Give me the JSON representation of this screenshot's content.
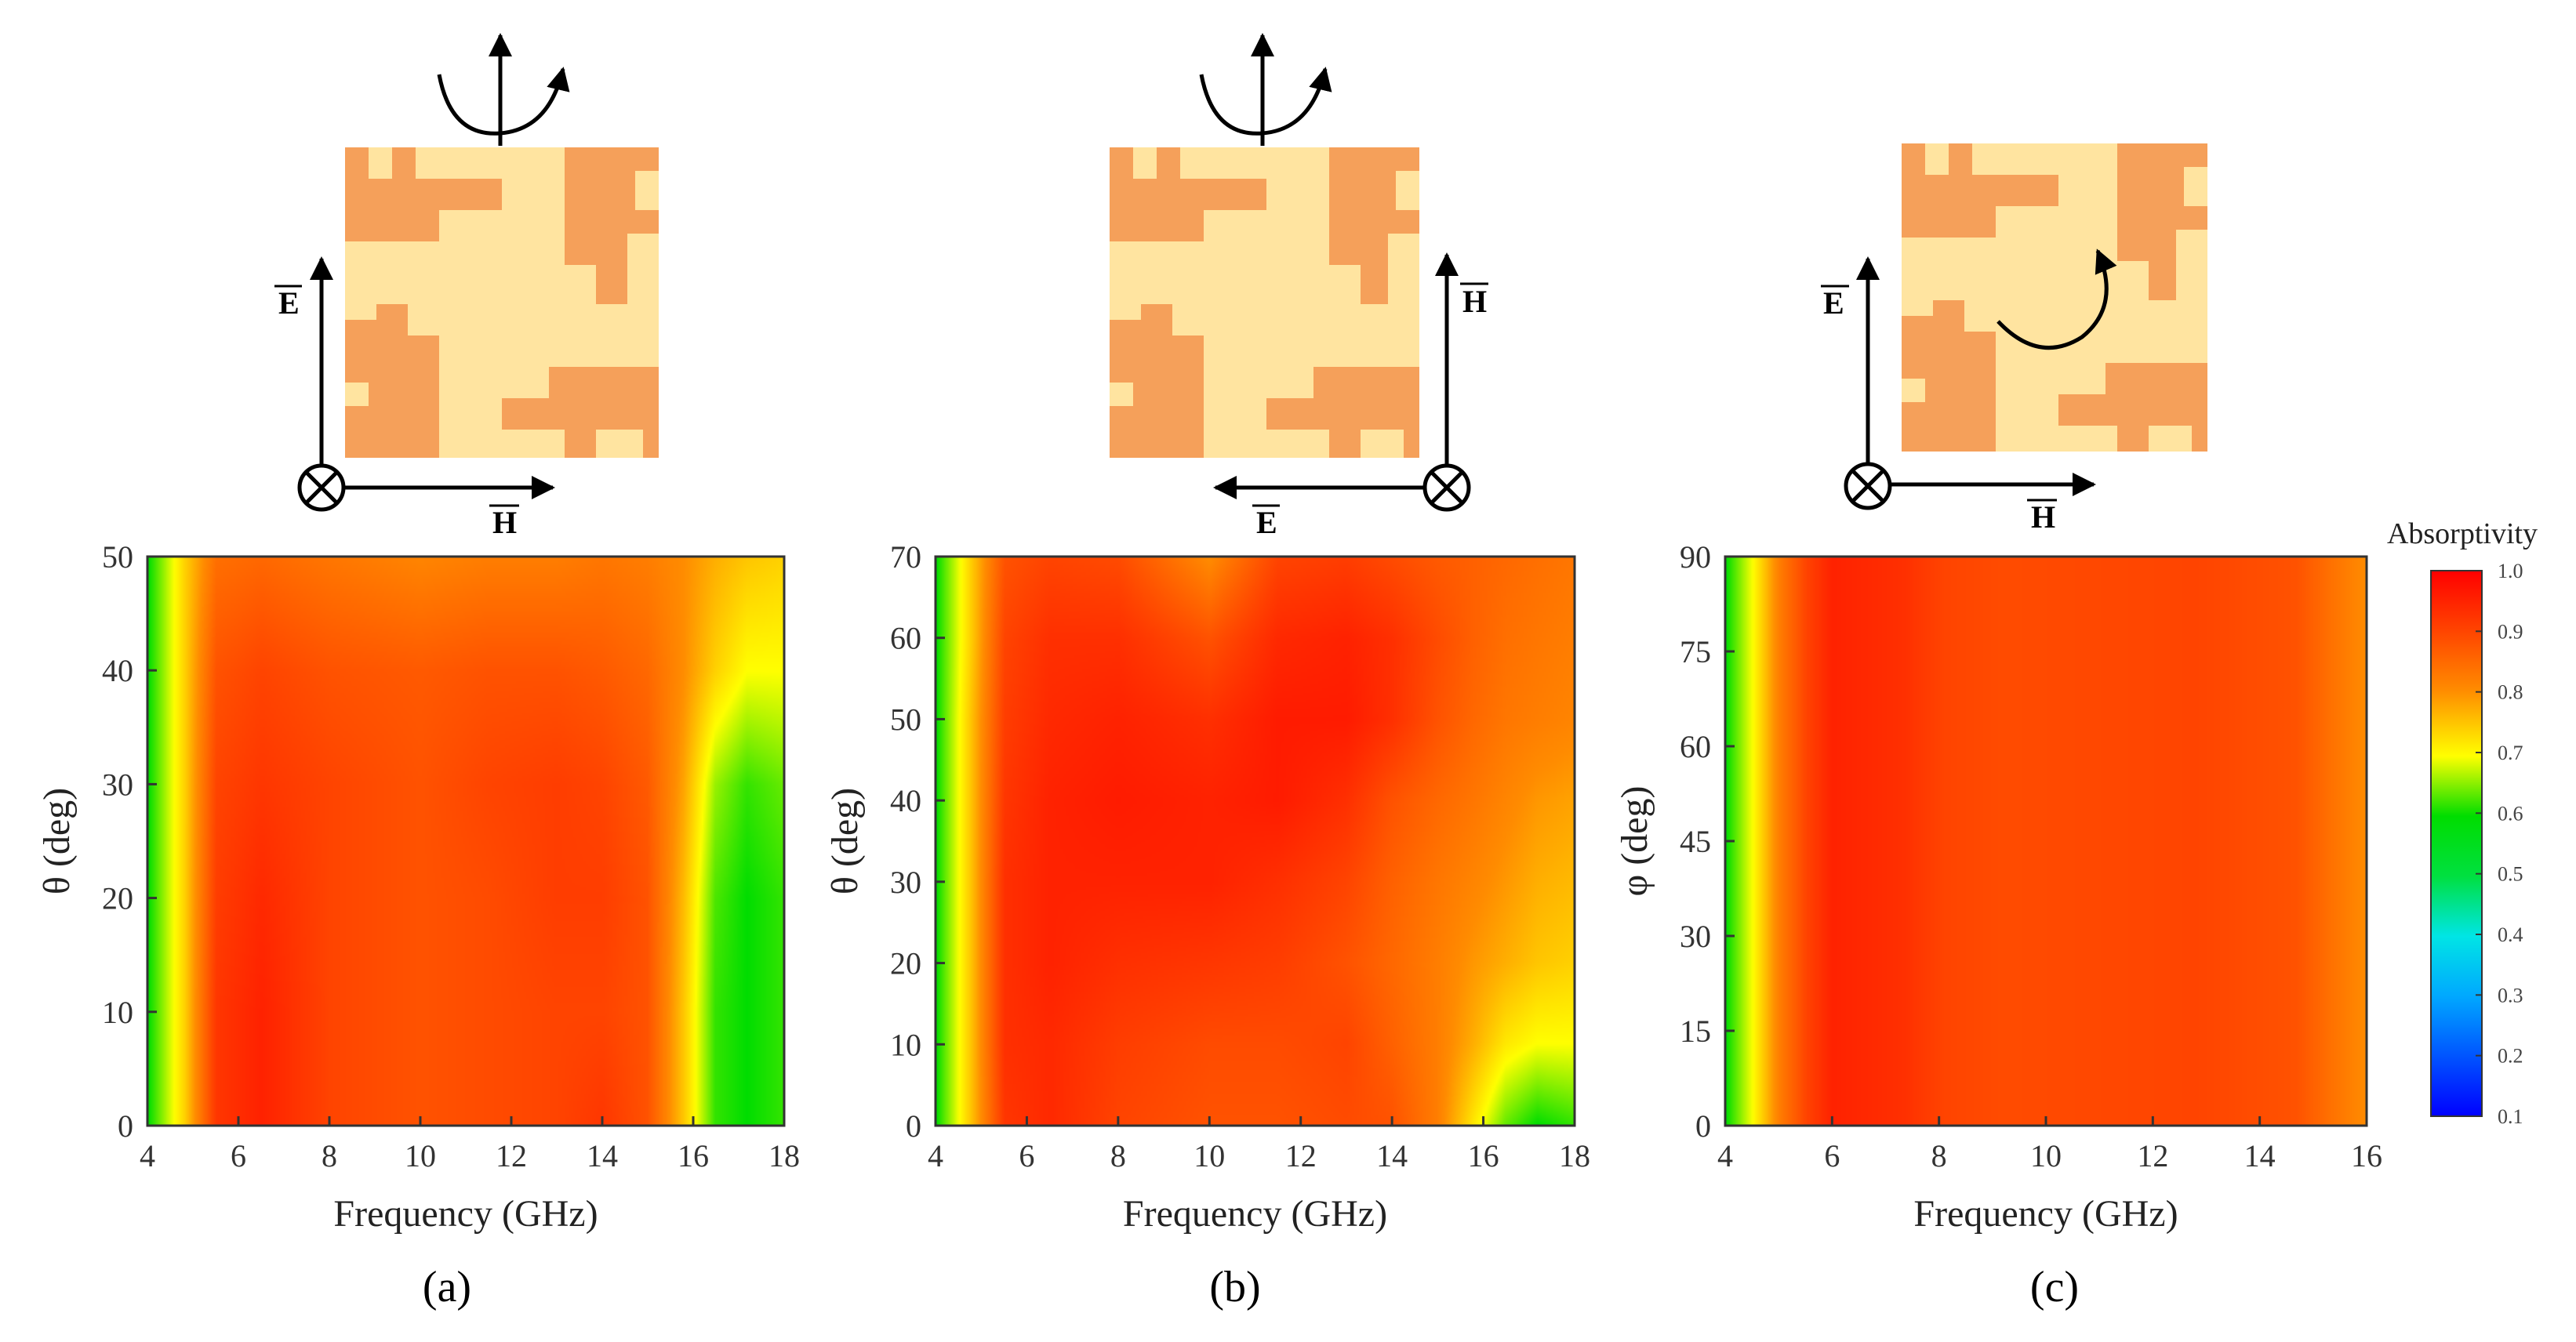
{
  "chart_data": [
    {
      "type": "heatmap",
      "panel_label": "(a)",
      "xlabel": "Frequency (GHz)",
      "ylabel": "θ (deg)",
      "xlim": [
        4,
        18
      ],
      "ylim": [
        0,
        50
      ],
      "xticks": [
        "4",
        "6",
        "8",
        "10",
        "12",
        "14",
        "16",
        "18"
      ],
      "yticks": [
        "0",
        "10",
        "20",
        "30",
        "40",
        "50"
      ],
      "x": [
        4,
        4.8,
        5.5,
        6.5,
        8,
        10,
        11.5,
        13,
        14,
        15,
        15.8,
        16.5,
        17.2,
        18
      ],
      "y": [
        0,
        10,
        20,
        30,
        40,
        50
      ],
      "z": [
        [
          0.6,
          0.74,
          0.92,
          0.95,
          0.9,
          0.88,
          0.89,
          0.9,
          0.92,
          0.88,
          0.75,
          0.62,
          0.6,
          0.62
        ],
        [
          0.6,
          0.74,
          0.92,
          0.95,
          0.9,
          0.88,
          0.89,
          0.9,
          0.9,
          0.88,
          0.75,
          0.62,
          0.6,
          0.62
        ],
        [
          0.6,
          0.74,
          0.91,
          0.94,
          0.9,
          0.88,
          0.89,
          0.91,
          0.91,
          0.88,
          0.76,
          0.63,
          0.6,
          0.62
        ],
        [
          0.6,
          0.74,
          0.9,
          0.92,
          0.9,
          0.88,
          0.9,
          0.91,
          0.9,
          0.87,
          0.78,
          0.66,
          0.62,
          0.64
        ],
        [
          0.6,
          0.74,
          0.88,
          0.9,
          0.88,
          0.87,
          0.88,
          0.88,
          0.87,
          0.85,
          0.8,
          0.74,
          0.7,
          0.7
        ],
        [
          0.6,
          0.74,
          0.84,
          0.85,
          0.83,
          0.81,
          0.82,
          0.82,
          0.83,
          0.82,
          0.8,
          0.77,
          0.75,
          0.74
        ]
      ],
      "vectors": {
        "k": "k",
        "e": "E",
        "h": "H"
      }
    },
    {
      "type": "heatmap",
      "panel_label": "(b)",
      "xlabel": "Frequency (GHz)",
      "ylabel": "θ (deg)",
      "xlim": [
        4,
        18
      ],
      "ylim": [
        0,
        70
      ],
      "xticks": [
        "4",
        "6",
        "8",
        "10",
        "12",
        "14",
        "16",
        "18"
      ],
      "yticks": [
        "0",
        "10",
        "20",
        "30",
        "40",
        "50",
        "60",
        "70"
      ],
      "x": [
        4,
        4.8,
        5.5,
        6.5,
        8,
        10,
        11.5,
        13,
        14,
        15,
        15.8,
        16.5,
        17.2,
        18
      ],
      "y": [
        0,
        10,
        20,
        30,
        40,
        50,
        60,
        70
      ],
      "z": [
        [
          0.6,
          0.76,
          0.92,
          0.94,
          0.9,
          0.88,
          0.88,
          0.89,
          0.88,
          0.82,
          0.72,
          0.64,
          0.6,
          0.62
        ],
        [
          0.6,
          0.76,
          0.93,
          0.94,
          0.91,
          0.89,
          0.89,
          0.9,
          0.86,
          0.82,
          0.77,
          0.72,
          0.7,
          0.7
        ],
        [
          0.6,
          0.76,
          0.93,
          0.95,
          0.93,
          0.92,
          0.91,
          0.88,
          0.85,
          0.82,
          0.79,
          0.77,
          0.75,
          0.74
        ],
        [
          0.6,
          0.76,
          0.93,
          0.95,
          0.95,
          0.95,
          0.93,
          0.9,
          0.86,
          0.83,
          0.81,
          0.79,
          0.77,
          0.76
        ],
        [
          0.6,
          0.76,
          0.92,
          0.95,
          0.96,
          0.95,
          0.96,
          0.93,
          0.88,
          0.85,
          0.83,
          0.81,
          0.79,
          0.78
        ],
        [
          0.6,
          0.76,
          0.91,
          0.94,
          0.95,
          0.93,
          0.96,
          0.96,
          0.93,
          0.88,
          0.85,
          0.83,
          0.82,
          0.81
        ],
        [
          0.6,
          0.75,
          0.9,
          0.93,
          0.93,
          0.88,
          0.94,
          0.95,
          0.93,
          0.89,
          0.86,
          0.84,
          0.83,
          0.82
        ],
        [
          0.6,
          0.75,
          0.88,
          0.9,
          0.89,
          0.8,
          0.9,
          0.91,
          0.89,
          0.87,
          0.86,
          0.85,
          0.84,
          0.83
        ]
      ],
      "vectors": {
        "k": "k",
        "e": "E",
        "h": "H"
      }
    },
    {
      "type": "heatmap",
      "panel_label": "(c)",
      "xlabel": "Frequency (GHz)",
      "ylabel": "φ (deg)",
      "xlim": [
        4,
        16
      ],
      "ylim": [
        0,
        90
      ],
      "xticks": [
        "4",
        "6",
        "8",
        "10",
        "12",
        "14",
        "16"
      ],
      "yticks": [
        "0",
        "15",
        "30",
        "45",
        "60",
        "75",
        "90"
      ],
      "x": [
        4,
        4.5,
        5,
        5.5,
        6,
        7.3,
        8.1,
        9.2,
        12.8,
        14.7,
        15.3,
        16
      ],
      "y": [
        0,
        90
      ],
      "z": [
        [
          0.6,
          0.7,
          0.82,
          0.9,
          0.95,
          0.93,
          0.9,
          0.89,
          0.9,
          0.88,
          0.84,
          0.8
        ],
        [
          0.6,
          0.7,
          0.82,
          0.9,
          0.95,
          0.93,
          0.9,
          0.89,
          0.9,
          0.88,
          0.84,
          0.8
        ]
      ],
      "vectors": {
        "k": "k",
        "e": "E",
        "h": "H"
      }
    }
  ],
  "colorbar": {
    "title": "Absorptivity",
    "ticks": [
      "1.0",
      "0.9",
      "0.8",
      "0.7",
      "0.6",
      "0.5",
      "0.4",
      "0.3",
      "0.2",
      "0.1"
    ],
    "range": [
      0.1,
      1.0
    ]
  }
}
